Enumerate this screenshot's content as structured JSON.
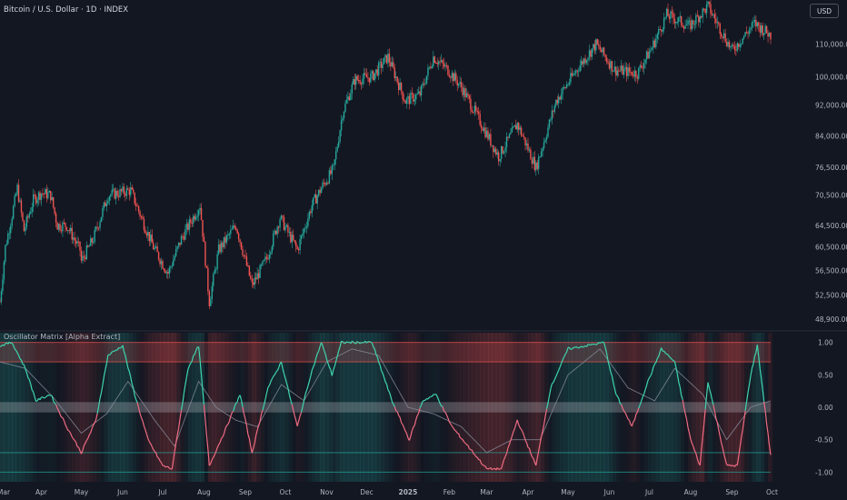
{
  "header": {
    "symbol_title": "Bitcoin / U.S. Dollar · 1D · INDEX",
    "currency": "USD"
  },
  "indicator": {
    "title": "Oscillator Matrix [Alpha Extract]"
  },
  "colors": {
    "bull": "#26a69a",
    "bear": "#ef5350",
    "background": "#131722",
    "teal_line": "#3fd6ad",
    "pink_line": "#f06c83"
  },
  "chart_data": [
    {
      "type": "line",
      "name": "price",
      "title": "Bitcoin / U.S. Dollar · 1D · INDEX",
      "x_ticks": [
        "Mar",
        "Apr",
        "May",
        "Jun",
        "Jul",
        "Aug",
        "Sep",
        "Oct",
        "Nov",
        "Dec",
        "2025",
        "Feb",
        "Mar",
        "Apr",
        "May",
        "Jun",
        "Jul",
        "Aug",
        "Sep",
        "Oct"
      ],
      "y_ticks": [
        "110,000.00",
        "100,000.00",
        "92,000.00",
        "84,000.00",
        "76,500.00",
        "70,500.00",
        "64,500.00",
        "60,500.00",
        "56,500.00",
        "52,500.00",
        "48,900.00"
      ],
      "y_scale": "log",
      "y_range": [
        47500,
        124000
      ],
      "x_range": [
        "2024-03-01",
        "2025-09-30"
      ],
      "points": [
        [
          "2024-03-01",
          51500
        ],
        [
          "2024-03-05",
          60500
        ],
        [
          "2024-03-10",
          66500
        ],
        [
          "2024-03-14",
          72000
        ],
        [
          "2024-03-19",
          63500
        ],
        [
          "2024-03-26",
          69500
        ],
        [
          "2024-04-01",
          71000
        ],
        [
          "2024-04-08",
          70500
        ],
        [
          "2024-04-13",
          64500
        ],
        [
          "2024-04-20",
          64500
        ],
        [
          "2024-04-30",
          60000
        ],
        [
          "2024-05-01",
          58000
        ],
        [
          "2024-05-10",
          62000
        ],
        [
          "2024-05-21",
          70500
        ],
        [
          "2024-06-07",
          71500
        ],
        [
          "2024-06-15",
          66000
        ],
        [
          "2024-06-24",
          60500
        ],
        [
          "2024-07-05",
          56000
        ],
        [
          "2024-07-15",
          62000
        ],
        [
          "2024-07-29",
          68500
        ],
        [
          "2024-08-05",
          51500
        ],
        [
          "2024-08-12",
          60000
        ],
        [
          "2024-08-25",
          64500
        ],
        [
          "2024-09-06",
          54000
        ],
        [
          "2024-09-17",
          58500
        ],
        [
          "2024-09-27",
          66000
        ],
        [
          "2024-10-10",
          60000
        ],
        [
          "2024-10-21",
          68500
        ],
        [
          "2024-10-29",
          72500
        ],
        [
          "2024-11-06",
          76000
        ],
        [
          "2024-11-13",
          90000
        ],
        [
          "2024-11-22",
          99000
        ],
        [
          "2024-12-05",
          100000
        ],
        [
          "2024-12-17",
          106000
        ],
        [
          "2024-12-30",
          93000
        ],
        [
          "2025-01-10",
          95000
        ],
        [
          "2025-01-20",
          106000
        ],
        [
          "2025-01-31",
          102000
        ],
        [
          "2025-02-10",
          97000
        ],
        [
          "2025-02-25",
          87000
        ],
        [
          "2025-03-10",
          79000
        ],
        [
          "2025-03-24",
          87000
        ],
        [
          "2025-04-07",
          76500
        ],
        [
          "2025-04-22",
          93000
        ],
        [
          "2025-05-09",
          103000
        ],
        [
          "2025-05-22",
          110000
        ],
        [
          "2025-06-05",
          102000
        ],
        [
          "2025-06-22",
          101000
        ],
        [
          "2025-07-03",
          109000
        ],
        [
          "2025-07-14",
          120000
        ],
        [
          "2025-07-31",
          116000
        ],
        [
          "2025-08-14",
          123000
        ],
        [
          "2025-09-01",
          108000
        ],
        [
          "2025-09-18",
          117000
        ],
        [
          "2025-09-30",
          113000
        ]
      ]
    },
    {
      "type": "line",
      "name": "oscillator",
      "title": "Oscillator Matrix [Alpha Extract]",
      "y_ticks": [
        "1.00",
        "0.50",
        "0.00",
        "-0.50",
        "-1.00"
      ],
      "y_range": [
        -1.15,
        1.15
      ],
      "levels": {
        "overbought": [
          0.7,
          1.0
        ],
        "neutral": [
          -0.08,
          0.08
        ],
        "oversold": [
          -1.0,
          -0.7
        ]
      },
      "series": [
        {
          "values": [
            [
              "2024-03-01",
              0.95
            ],
            [
              "2024-03-10",
              1.0
            ],
            [
              "2024-03-20",
              0.6
            ],
            [
              "2024-03-28",
              0.1
            ],
            [
              "2024-04-08",
              0.2
            ],
            [
              "2024-04-20",
              -0.3
            ],
            [
              "2024-05-01",
              -0.7
            ],
            [
              "2024-05-12",
              -0.2
            ],
            [
              "2024-05-21",
              0.8
            ],
            [
              "2024-06-01",
              0.95
            ],
            [
              "2024-06-10",
              0.2
            ],
            [
              "2024-06-20",
              -0.5
            ],
            [
              "2024-07-01",
              -0.9
            ],
            [
              "2024-07-08",
              -0.95
            ],
            [
              "2024-07-20",
              0.6
            ],
            [
              "2024-07-28",
              0.95
            ],
            [
              "2024-08-05",
              -0.9
            ],
            [
              "2024-08-18",
              -0.3
            ],
            [
              "2024-08-28",
              0.2
            ],
            [
              "2024-09-06",
              -0.7
            ],
            [
              "2024-09-18",
              0.3
            ],
            [
              "2024-09-28",
              0.7
            ],
            [
              "2024-10-10",
              -0.3
            ],
            [
              "2024-10-20",
              0.5
            ],
            [
              "2024-10-28",
              1.0
            ],
            [
              "2024-11-05",
              0.5
            ],
            [
              "2024-11-12",
              1.0
            ],
            [
              "2024-12-05",
              1.0
            ],
            [
              "2024-12-20",
              0.1
            ],
            [
              "2025-01-02",
              -0.5
            ],
            [
              "2025-01-12",
              0.1
            ],
            [
              "2025-01-22",
              0.2
            ],
            [
              "2025-02-03",
              -0.3
            ],
            [
              "2025-02-15",
              -0.6
            ],
            [
              "2025-03-01",
              -0.95
            ],
            [
              "2025-03-12",
              -0.95
            ],
            [
              "2025-03-24",
              -0.2
            ],
            [
              "2025-04-07",
              -0.9
            ],
            [
              "2025-04-18",
              0.3
            ],
            [
              "2025-05-01",
              0.9
            ],
            [
              "2025-05-15",
              0.95
            ],
            [
              "2025-05-28",
              1.0
            ],
            [
              "2025-06-06",
              0.2
            ],
            [
              "2025-06-18",
              -0.3
            ],
            [
              "2025-06-30",
              0.4
            ],
            [
              "2025-07-10",
              0.9
            ],
            [
              "2025-07-20",
              0.7
            ],
            [
              "2025-08-01",
              -0.5
            ],
            [
              "2025-08-08",
              -0.9
            ],
            [
              "2025-08-14",
              0.4
            ],
            [
              "2025-08-28",
              -0.9
            ],
            [
              "2025-09-05",
              -0.9
            ],
            [
              "2025-09-15",
              0.5
            ],
            [
              "2025-09-20",
              0.95
            ],
            [
              "2025-09-30",
              -0.75
            ]
          ]
        },
        {
          "values": [
            [
              "2024-03-01",
              0.7
            ],
            [
              "2024-03-20",
              0.6
            ],
            [
              "2024-04-10",
              0.15
            ],
            [
              "2024-05-01",
              -0.4
            ],
            [
              "2024-05-20",
              -0.1
            ],
            [
              "2024-06-05",
              0.4
            ],
            [
              "2024-06-25",
              -0.2
            ],
            [
              "2024-07-10",
              -0.6
            ],
            [
              "2024-07-28",
              0.4
            ],
            [
              "2024-08-10",
              0.0
            ],
            [
              "2024-08-25",
              -0.2
            ],
            [
              "2024-09-10",
              -0.3
            ],
            [
              "2024-09-28",
              0.35
            ],
            [
              "2024-10-15",
              0.1
            ],
            [
              "2024-11-01",
              0.7
            ],
            [
              "2024-11-20",
              0.9
            ],
            [
              "2024-12-10",
              0.8
            ],
            [
              "2025-01-01",
              0.0
            ],
            [
              "2025-01-20",
              -0.1
            ],
            [
              "2025-02-10",
              -0.3
            ],
            [
              "2025-03-01",
              -0.7
            ],
            [
              "2025-03-20",
              -0.5
            ],
            [
              "2025-04-10",
              -0.5
            ],
            [
              "2025-05-01",
              0.5
            ],
            [
              "2025-05-25",
              0.9
            ],
            [
              "2025-06-15",
              0.3
            ],
            [
              "2025-07-05",
              0.1
            ],
            [
              "2025-07-20",
              0.6
            ],
            [
              "2025-08-10",
              0.2
            ],
            [
              "2025-08-28",
              -0.5
            ],
            [
              "2025-09-15",
              0.0
            ],
            [
              "2025-09-30",
              0.1
            ]
          ]
        }
      ]
    }
  ]
}
